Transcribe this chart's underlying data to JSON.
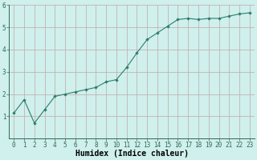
{
  "x": [
    0,
    1,
    2,
    3,
    4,
    5,
    6,
    7,
    8,
    9,
    10,
    11,
    12,
    13,
    14,
    15,
    16,
    17,
    18,
    19,
    20,
    21,
    22,
    23
  ],
  "y": [
    1.15,
    1.75,
    0.7,
    1.3,
    1.9,
    2.0,
    2.1,
    2.2,
    2.3,
    2.55,
    2.65,
    3.2,
    3.85,
    4.45,
    4.75,
    5.05,
    5.35,
    5.4,
    5.35,
    5.4,
    5.4,
    5.5,
    5.6,
    5.65
  ],
  "xlabel": "Humidex (Indice chaleur)",
  "ylim": [
    0,
    6
  ],
  "xlim": [
    -0.5,
    23.5
  ],
  "yticks": [
    1,
    2,
    3,
    4,
    5,
    6
  ],
  "xticks": [
    0,
    1,
    2,
    3,
    4,
    5,
    6,
    7,
    8,
    9,
    10,
    11,
    12,
    13,
    14,
    15,
    16,
    17,
    18,
    19,
    20,
    21,
    22,
    23
  ],
  "line_color": "#2e7d6e",
  "marker": "D",
  "marker_size": 1.8,
  "bg_color": "#cff0ec",
  "grid_color": "#c0a8a8",
  "tick_label_fontsize": 5.5,
  "xlabel_fontsize": 7.0
}
